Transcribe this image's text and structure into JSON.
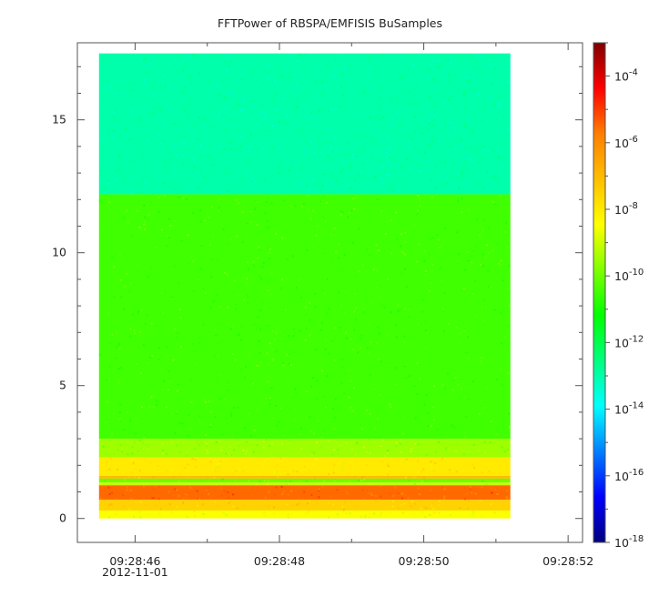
{
  "chart_data": {
    "type": "heatmap",
    "title": "FFTPower of RBSPA/EMFISIS  BuSamples",
    "xlabel": "",
    "ylabel": "",
    "x_ticks": [
      {
        "value": "09:28:46",
        "major": true
      },
      {
        "value": "09:28:48",
        "major": true
      },
      {
        "value": "09:28:50",
        "major": true
      },
      {
        "value": "09:28:52",
        "major": true
      }
    ],
    "x_date_label": "2012-11-01",
    "x_range": [
      "09:28:45.2",
      "09:28:52.2"
    ],
    "data_x_range": [
      "09:28:45.5",
      "09:28:51.2"
    ],
    "y_ticks": [
      0,
      5,
      10,
      15
    ],
    "ylim": [
      -0.9,
      17.9
    ],
    "data_y_range": [
      0,
      17.5
    ],
    "colorbar": {
      "scale": "log",
      "range": [
        1e-18,
        0.001
      ],
      "tick_labels": [
        {
          "base": "10",
          "exp": "-4"
        },
        {
          "base": "10",
          "exp": "-6"
        },
        {
          "base": "10",
          "exp": "-8"
        },
        {
          "base": "10",
          "exp": "-10"
        },
        {
          "base": "10",
          "exp": "-12"
        },
        {
          "base": "10",
          "exp": "-14"
        },
        {
          "base": "10",
          "exp": "-16"
        },
        {
          "base": "10",
          "exp": "-18"
        }
      ],
      "tick_exponents": [
        -4,
        -6,
        -8,
        -10,
        -12,
        -14,
        -16,
        -18
      ],
      "colormap": [
        "#00007f",
        "#0000ff",
        "#007fff",
        "#00ffff",
        "#00ff7f",
        "#00ff00",
        "#7fff00",
        "#ffff00",
        "#ffbf00",
        "#ff7f00",
        "#ff0000",
        "#7f0000"
      ]
    },
    "bands": [
      {
        "y_from": 12.2,
        "y_to": 17.5,
        "log_power": -13
      },
      {
        "y_from": 3.0,
        "y_to": 12.2,
        "log_power": -10.5
      },
      {
        "y_from": 2.3,
        "y_to": 3.0,
        "log_power": -9.5
      },
      {
        "y_from": 1.6,
        "y_to": 2.3,
        "log_power": -8
      },
      {
        "y_from": 1.5,
        "y_to": 1.6,
        "log_power": -7
      },
      {
        "y_from": 1.35,
        "y_to": 1.5,
        "log_power": -10
      },
      {
        "y_from": 1.25,
        "y_to": 1.35,
        "log_power": -9
      },
      {
        "y_from": 0.7,
        "y_to": 1.25,
        "log_power": -5.5
      },
      {
        "y_from": 0.3,
        "y_to": 0.7,
        "log_power": -7.5
      },
      {
        "y_from": 0.0,
        "y_to": 0.3,
        "log_power": -8.5
      }
    ],
    "grid": false,
    "legend": "colorbar-right"
  }
}
